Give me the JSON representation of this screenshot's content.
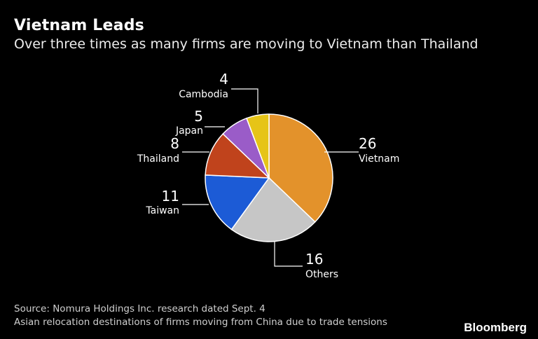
{
  "header": {
    "title": "Vietnam Leads",
    "subtitle": "Over three times as many firms are moving to Vietnam than Thailand"
  },
  "footer": {
    "source": "Source: Nomura Holdings Inc. research dated Sept. 4",
    "note": "Asian relocation destinations of firms moving from China due to trade tensions",
    "brand": "Bloomberg"
  },
  "chart_data": {
    "type": "pie",
    "title": "Vietnam Leads",
    "subtitle": "Over three times as many firms are moving to Vietnam than Thailand",
    "slices": [
      {
        "label": "Vietnam",
        "value": 26,
        "color": "#e3922b"
      },
      {
        "label": "Others",
        "value": 16,
        "color": "#c6c6c6"
      },
      {
        "label": "Taiwan",
        "value": 11,
        "color": "#1c5bd6"
      },
      {
        "label": "Thailand",
        "value": 8,
        "color": "#c0431c"
      },
      {
        "label": "Japan",
        "value": 5,
        "color": "#9a5cc8"
      },
      {
        "label": "Cambodia",
        "value": 4,
        "color": "#e6c417"
      }
    ]
  }
}
